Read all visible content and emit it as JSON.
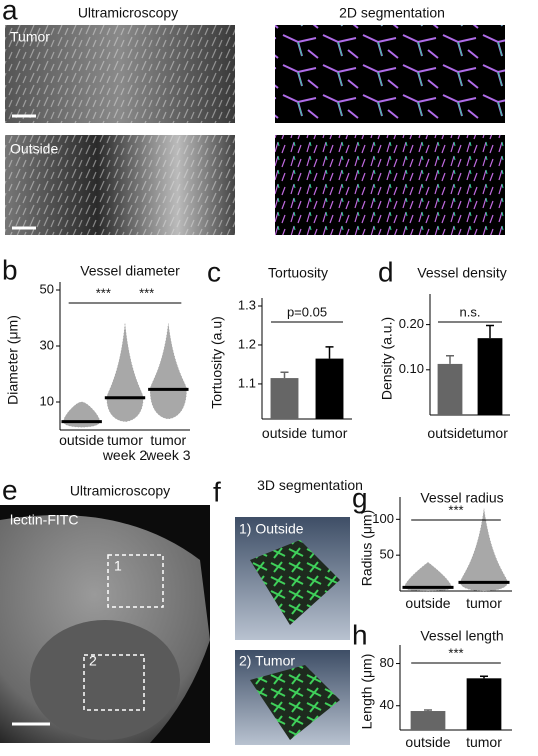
{
  "figure": {
    "panel_a": {
      "label": "a",
      "titles": [
        "Ultramicroscopy",
        "2D segmentation"
      ],
      "rows": [
        "Tumor",
        "Outside"
      ]
    },
    "panel_e": {
      "label": "e",
      "title": "Ultramicroscopy",
      "stain": "lectin-FITC",
      "regions": [
        "1",
        "2"
      ]
    },
    "panel_f": {
      "label": "f",
      "title": "3D segmentation",
      "views": [
        "1) Outside",
        "2) Tumor"
      ]
    }
  },
  "chart_data": [
    {
      "type": "swarm",
      "label": "b",
      "title": "Vessel diameter",
      "y_label": "Diameter (μm)",
      "categories": [
        "outside",
        "tumor week 2",
        "tumor week 3"
      ],
      "values": [
        3,
        11.5,
        14.5
      ],
      "min": [
        1,
        3,
        4
      ],
      "max": [
        10,
        38,
        38
      ],
      "color": "#a8a8a8",
      "ylim": [
        0,
        50
      ],
      "yticks": [
        10,
        30,
        50
      ],
      "annotations": [
        "***",
        "***"
      ]
    },
    {
      "type": "bar",
      "label": "c",
      "title": "Tortuosity",
      "y_label": "Tortuosity (a.u)",
      "categories": [
        "outside",
        "tumor"
      ],
      "values": [
        1.115,
        1.165
      ],
      "errors": [
        0.015,
        0.03
      ],
      "colors": [
        "#666666",
        "#000000"
      ],
      "ylim": [
        1.01,
        1.3
      ],
      "yticks": [
        1.1,
        1.2,
        1.3
      ],
      "annotations": [
        "p=0.05"
      ]
    },
    {
      "type": "bar",
      "label": "d",
      "title": "Vessel density",
      "y_label": "Density (a.u.)",
      "categories": [
        "outside",
        "tumor"
      ],
      "values": [
        0.113,
        0.17
      ],
      "errors": [
        0.018,
        0.028
      ],
      "colors": [
        "#666666",
        "#000000"
      ],
      "ylim": [
        0,
        0.25
      ],
      "yticks": [
        {
          "value": 0.1,
          "label": "0.10"
        },
        {
          "value": 0.2,
          "label": "0.20"
        }
      ],
      "annotations": [
        "n.s."
      ]
    },
    {
      "type": "swarm",
      "label": "g",
      "title": "Vessel radius",
      "y_label": "Radius (μm)",
      "categories": [
        "outside",
        "tumor"
      ],
      "values": [
        5,
        12
      ],
      "min": [
        0,
        0
      ],
      "max": [
        40,
        115
      ],
      "color": "#a8a8a8",
      "ylim": [
        0,
        120
      ],
      "yticks": [
        50,
        100
      ],
      "annotations": [
        "***"
      ]
    },
    {
      "type": "bar",
      "label": "h",
      "title": "Vessel length",
      "y_label": "Length (μm)",
      "categories": [
        "outside",
        "tumor"
      ],
      "values": [
        35,
        66
      ],
      "errors": [
        1,
        2
      ],
      "colors": [
        "#666666",
        "#000000"
      ],
      "ylim": [
        17,
        90
      ],
      "yticks": [
        40,
        80
      ],
      "annotations": [
        "***"
      ]
    }
  ]
}
